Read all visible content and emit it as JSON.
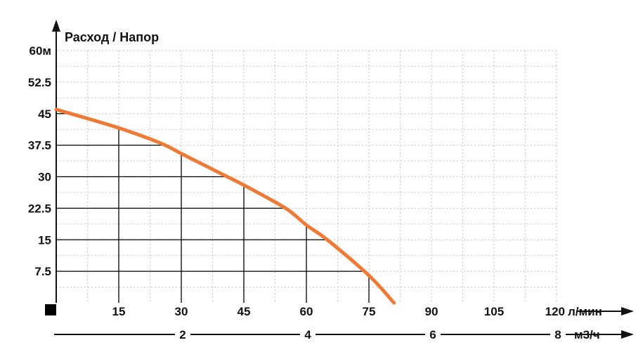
{
  "chart_data": {
    "type": "line",
    "title": "Расход / Напор",
    "y_ticks": [
      "60м",
      "52.5",
      "45",
      "37.5",
      "30",
      "22.5",
      "15",
      "7.5"
    ],
    "y_values": [
      60,
      52.5,
      45,
      37.5,
      30,
      22.5,
      15,
      7.5
    ],
    "x_ticks": [
      "15",
      "30",
      "45",
      "60",
      "75",
      "90",
      "105",
      "120"
    ],
    "x_values": [
      15,
      30,
      45,
      60,
      75,
      90,
      105,
      120
    ],
    "x_unit": "л/мин",
    "x2_ticks": [
      "2",
      "4",
      "6",
      "8"
    ],
    "x2_values": [
      2,
      4,
      6,
      8
    ],
    "x2_unit": "м3/ч",
    "xlim": [
      0,
      120
    ],
    "ylim": [
      0,
      60
    ],
    "x2lim": [
      0,
      8
    ],
    "grid": "dotted",
    "series": [
      {
        "x": [
          0,
          15,
          25,
          30,
          40,
          45,
          55,
          60,
          65,
          75,
          81
        ],
        "y": [
          46,
          41.6,
          38,
          35.5,
          30.5,
          28,
          22.5,
          18.5,
          15,
          6.5,
          0
        ]
      }
    ],
    "marker_reference_lines": [
      {
        "x": 15,
        "y": 41.6
      },
      {
        "x": 30,
        "y": 35.5
      },
      {
        "x": 45,
        "y": 28
      },
      {
        "x": 60,
        "y": 18.5
      },
      {
        "x": 75,
        "y": 6.5
      }
    ],
    "colors": {
      "curve": "#ee7a36",
      "axis": "#111111",
      "grid": "#cccccc",
      "ref": "#000000"
    }
  }
}
